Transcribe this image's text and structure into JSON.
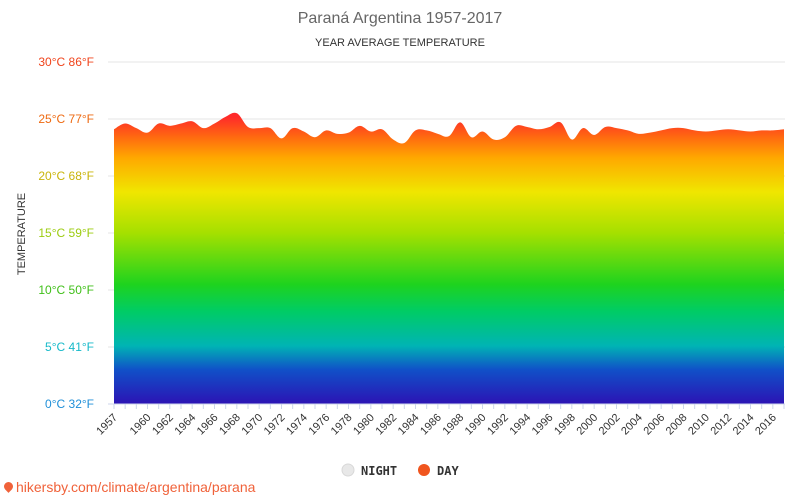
{
  "colors": {
    "night": "#e8e8e8",
    "day": "#f0551e",
    "footer": "#f0623a"
  },
  "footer": {
    "text": "hikersby.com/climate/argentina/parana",
    "icon": "map-pin-icon"
  },
  "chart_data": {
    "type": "area",
    "title": "Paraná Argentina 1957-2017",
    "subtitle": "YEAR AVERAGE TEMPERATURE",
    "ylabel": "TEMPERATURE",
    "xlabel": "",
    "ylim": [
      0,
      30
    ],
    "yticks": [
      {
        "value": 0,
        "label": "0°C 32°F",
        "color": "#1f8fd8"
      },
      {
        "value": 5,
        "label": "5°C 41°F",
        "color": "#16b9c9"
      },
      {
        "value": 10,
        "label": "10°C 50°F",
        "color": "#3fbf18"
      },
      {
        "value": 15,
        "label": "15°C 59°F",
        "color": "#9ccc10"
      },
      {
        "value": 20,
        "label": "20°C 68°F",
        "color": "#c9b40a"
      },
      {
        "value": 25,
        "label": "25°C 77°F",
        "color": "#ee6a12"
      },
      {
        "value": 30,
        "label": "30°C 86°F",
        "color": "#f0441c"
      }
    ],
    "xtick_labels": [
      "1957",
      "1960",
      "1962",
      "1964",
      "1966",
      "1968",
      "1970",
      "1972",
      "1974",
      "1976",
      "1978",
      "1980",
      "1982",
      "1984",
      "1986",
      "1988",
      "1990",
      "1992",
      "1994",
      "1996",
      "1998",
      "2000",
      "2002",
      "2004",
      "2006",
      "2008",
      "2010",
      "2012",
      "2014",
      "2016"
    ],
    "grid": true,
    "legend": {
      "placement": "bottom-center",
      "items": [
        {
          "name": "NIGHT",
          "color": "#e8e8e8"
        },
        {
          "name": "DAY",
          "color": "#f0551e"
        }
      ]
    },
    "x": [
      1957,
      1958,
      1959,
      1960,
      1961,
      1962,
      1963,
      1964,
      1965,
      1966,
      1967,
      1968,
      1969,
      1970,
      1971,
      1972,
      1973,
      1974,
      1975,
      1976,
      1977,
      1978,
      1979,
      1980,
      1981,
      1982,
      1983,
      1984,
      1985,
      1986,
      1987,
      1988,
      1989,
      1990,
      1991,
      1992,
      1993,
      1994,
      1995,
      1996,
      1997,
      1998,
      1999,
      2000,
      2001,
      2002,
      2003,
      2004,
      2005,
      2006,
      2007,
      2008,
      2009,
      2010,
      2011,
      2012,
      2013,
      2014,
      2015,
      2016,
      2017
    ],
    "series": [
      {
        "name": "NIGHT",
        "values": [
          12.6,
          12.5,
          12.8,
          12.9,
          11.8,
          13.2,
          11.6,
          12.4,
          12.2,
          12.3,
          12.4,
          12.4,
          12.3,
          12.5,
          11.9,
          12.6,
          12.2,
          11.4,
          11.2,
          11.3,
          12.0,
          11.8,
          11.5,
          12.3,
          13.1,
          13.5,
          12.8,
          12.9,
          13.1,
          13.5,
          13.0,
          12.8,
          13.5,
          13.4,
          13.2,
          12.9,
          13.0,
          13.6,
          13.0,
          13.1,
          14.2,
          13.2,
          13.2,
          13.4,
          14.3,
          13.8,
          13.4,
          12.5,
          11.6,
          13.3,
          12.6,
          13.2,
          11.8,
          12.9,
          12.9,
          13.4,
          12.9,
          12.8,
          13.6,
          12.8,
          14.0
        ]
      },
      {
        "name": "DAY",
        "values": [
          24.1,
          24.6,
          24.2,
          23.8,
          24.6,
          24.4,
          24.6,
          24.8,
          24.2,
          24.6,
          25.2,
          25.5,
          24.3,
          24.2,
          24.2,
          23.3,
          24.2,
          23.9,
          23.4,
          24.0,
          23.7,
          23.8,
          24.4,
          23.9,
          24.1,
          23.2,
          22.9,
          24.0,
          24.0,
          23.7,
          23.5,
          24.7,
          23.4,
          23.9,
          23.2,
          23.4,
          24.4,
          24.3,
          24.1,
          24.3,
          24.7,
          23.2,
          24.2,
          23.6,
          24.3,
          24.2,
          24.0,
          23.7,
          23.8,
          24.0,
          24.2,
          24.2,
          24.0,
          23.9,
          24.0,
          24.1,
          24.0,
          23.9,
          24.0,
          24.0,
          24.1
        ]
      }
    ]
  }
}
